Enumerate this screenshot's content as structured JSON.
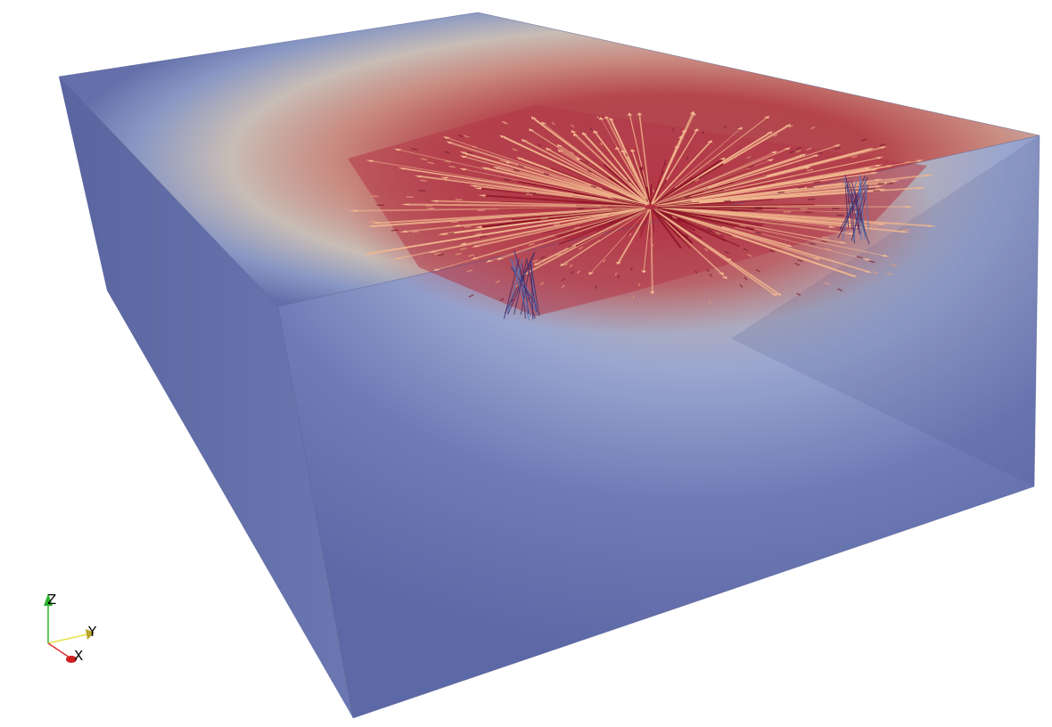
{
  "scene": {
    "description_colors": {
      "background": "#ffffff",
      "volume_low": "#5e6aa8",
      "volume_mid": "#c8b8b4",
      "volume_high": "#b5333f",
      "arrow_hot": "#f2b88f",
      "arrow_core": "#8e1326",
      "arrow_cool": "#4a78c0"
    }
  },
  "axes": {
    "z_label": "Z",
    "y_label": "Y",
    "x_label": "X",
    "z_color": "#2db52d",
    "y_color": "#e8e24a",
    "x_color": "#e03030"
  }
}
